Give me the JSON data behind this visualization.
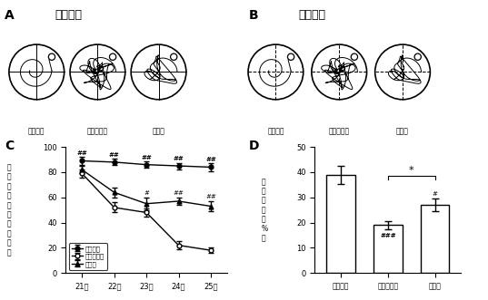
{
  "panel_A_title": "信号学习",
  "panel_B_title": "空间记忆",
  "panel_C_xlabel_ticks": [
    "21天",
    "22天",
    "23天",
    "24天",
    "25天"
  ],
  "panel_C_ylim": [
    0,
    100
  ],
  "panel_C_yticks": [
    0,
    20,
    40,
    60,
    80,
    100
  ],
  "panel_C_group1_label": "假手术组",
  "panel_C_group2_label": "溶剂对照组",
  "panel_C_group3_label": "治疗组",
  "panel_C_group1_values": [
    89,
    88,
    86,
    85,
    84
  ],
  "panel_C_group1_errors": [
    3,
    2.5,
    2.5,
    2.5,
    3
  ],
  "panel_C_group2_values": [
    79,
    52,
    48,
    22,
    18
  ],
  "panel_C_group2_errors": [
    3,
    4,
    3,
    3,
    2
  ],
  "panel_C_group3_values": [
    82,
    64,
    55,
    57,
    53
  ],
  "panel_C_group3_errors": [
    3,
    4,
    5,
    3,
    4
  ],
  "panel_D_ylim": [
    0,
    50
  ],
  "panel_D_yticks": [
    0,
    10,
    20,
    30,
    40,
    50
  ],
  "panel_D_categories": [
    "假手术组",
    "溶剂对照组",
    "治疗组"
  ],
  "panel_D_values": [
    39,
    19,
    27
  ],
  "panel_D_errors": [
    3.5,
    1.5,
    2.5
  ],
  "panel_D_bar_color": "#ffffff",
  "panel_D_bar_edgecolor": "#000000",
  "background_color": "#ffffff"
}
